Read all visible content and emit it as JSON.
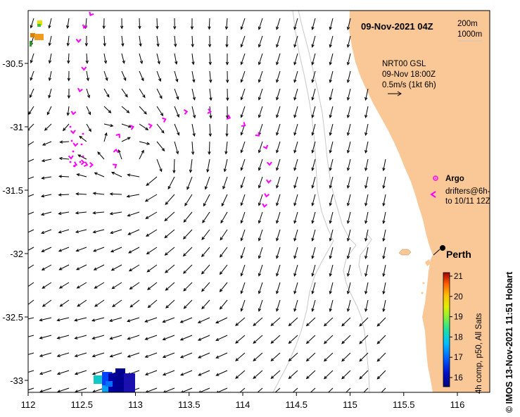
{
  "map": {
    "date_title": "09-Nov-2021 04Z",
    "depth_legend": [
      "200m",
      "1000m"
    ],
    "current_info": [
      "NRT00 GSL",
      "09-Nov 18:00Z",
      "0.5m/s (1kt 6h)"
    ],
    "argo_label": "Argo",
    "drifters_label": [
      "drifters@6h-",
      "to 10/11 12Z"
    ],
    "city": "Perth",
    "colorbar_label": "4h comp, p50, All Sats",
    "colorbar_ticks": [
      "21",
      "20",
      "19",
      "18",
      "17",
      "16"
    ],
    "credit": "© IMOS 13-Nov-2021 11:51 Hobart",
    "x_ticks": [
      "112",
      "112.5",
      "113",
      "113.5",
      "114",
      "114.5",
      "115",
      "115.5",
      "116"
    ],
    "y_ticks": [
      "-30.5",
      "-31",
      "-31.5",
      "-32",
      "-32.5",
      "-33"
    ],
    "colors": {
      "land": "#f9c896",
      "drifter": "#ff00ff",
      "argo": "#ff00ff",
      "arrow": "#000000",
      "isobath": "#c8c8c8"
    }
  },
  "chart_data": {
    "type": "map",
    "x_label": "longitude",
    "y_label": "latitude",
    "xlim": [
      112,
      116.3
    ],
    "ylim": [
      -33.1,
      -30.1
    ],
    "drifter_track": [
      {
        "lon": 112.58,
        "lat": -30.12
      },
      {
        "lon": 112.52,
        "lat": -30.22
      },
      {
        "lon": 112.47,
        "lat": -30.33
      },
      {
        "lon": 112.52,
        "lat": -30.55
      },
      {
        "lon": 112.48,
        "lat": -30.72
      },
      {
        "lon": 112.42,
        "lat": -30.9
      },
      {
        "lon": 112.42,
        "lat": -31.05
      },
      {
        "lon": 112.44,
        "lat": -31.15
      },
      {
        "lon": 112.4,
        "lat": -31.25
      },
      {
        "lon": 112.45,
        "lat": -31.3
      },
      {
        "lon": 112.52,
        "lat": -31.28
      },
      {
        "lon": 112.55,
        "lat": -31.3
      },
      {
        "lon": 112.6,
        "lat": -31.3
      },
      {
        "lon": 112.82,
        "lat": -31.3
      },
      {
        "lon": 112.82,
        "lat": -31.18
      },
      {
        "lon": 112.85,
        "lat": -31.06
      },
      {
        "lon": 112.98,
        "lat": -31.0
      },
      {
        "lon": 113.15,
        "lat": -30.99
      },
      {
        "lon": 113.28,
        "lat": -30.94
      },
      {
        "lon": 113.48,
        "lat": -30.88
      },
      {
        "lon": 113.7,
        "lat": -30.88
      },
      {
        "lon": 113.88,
        "lat": -30.93
      },
      {
        "lon": 114.02,
        "lat": -30.99
      },
      {
        "lon": 114.15,
        "lat": -31.07
      },
      {
        "lon": 114.22,
        "lat": -31.17
      },
      {
        "lon": 114.25,
        "lat": -31.3
      },
      {
        "lon": 114.24,
        "lat": -31.44
      },
      {
        "lon": 114.22,
        "lat": -31.55
      },
      {
        "lon": 114.2,
        "lat": -31.63
      }
    ],
    "argo_floats": [
      {
        "lon": 115.9,
        "lat": -31.45
      }
    ],
    "perth": {
      "lon": 115.86,
      "lat": -31.95
    },
    "sst_colorbar": {
      "min": 15.7,
      "max": 21,
      "ticks": [
        16,
        17,
        18,
        19,
        20,
        21
      ]
    }
  }
}
